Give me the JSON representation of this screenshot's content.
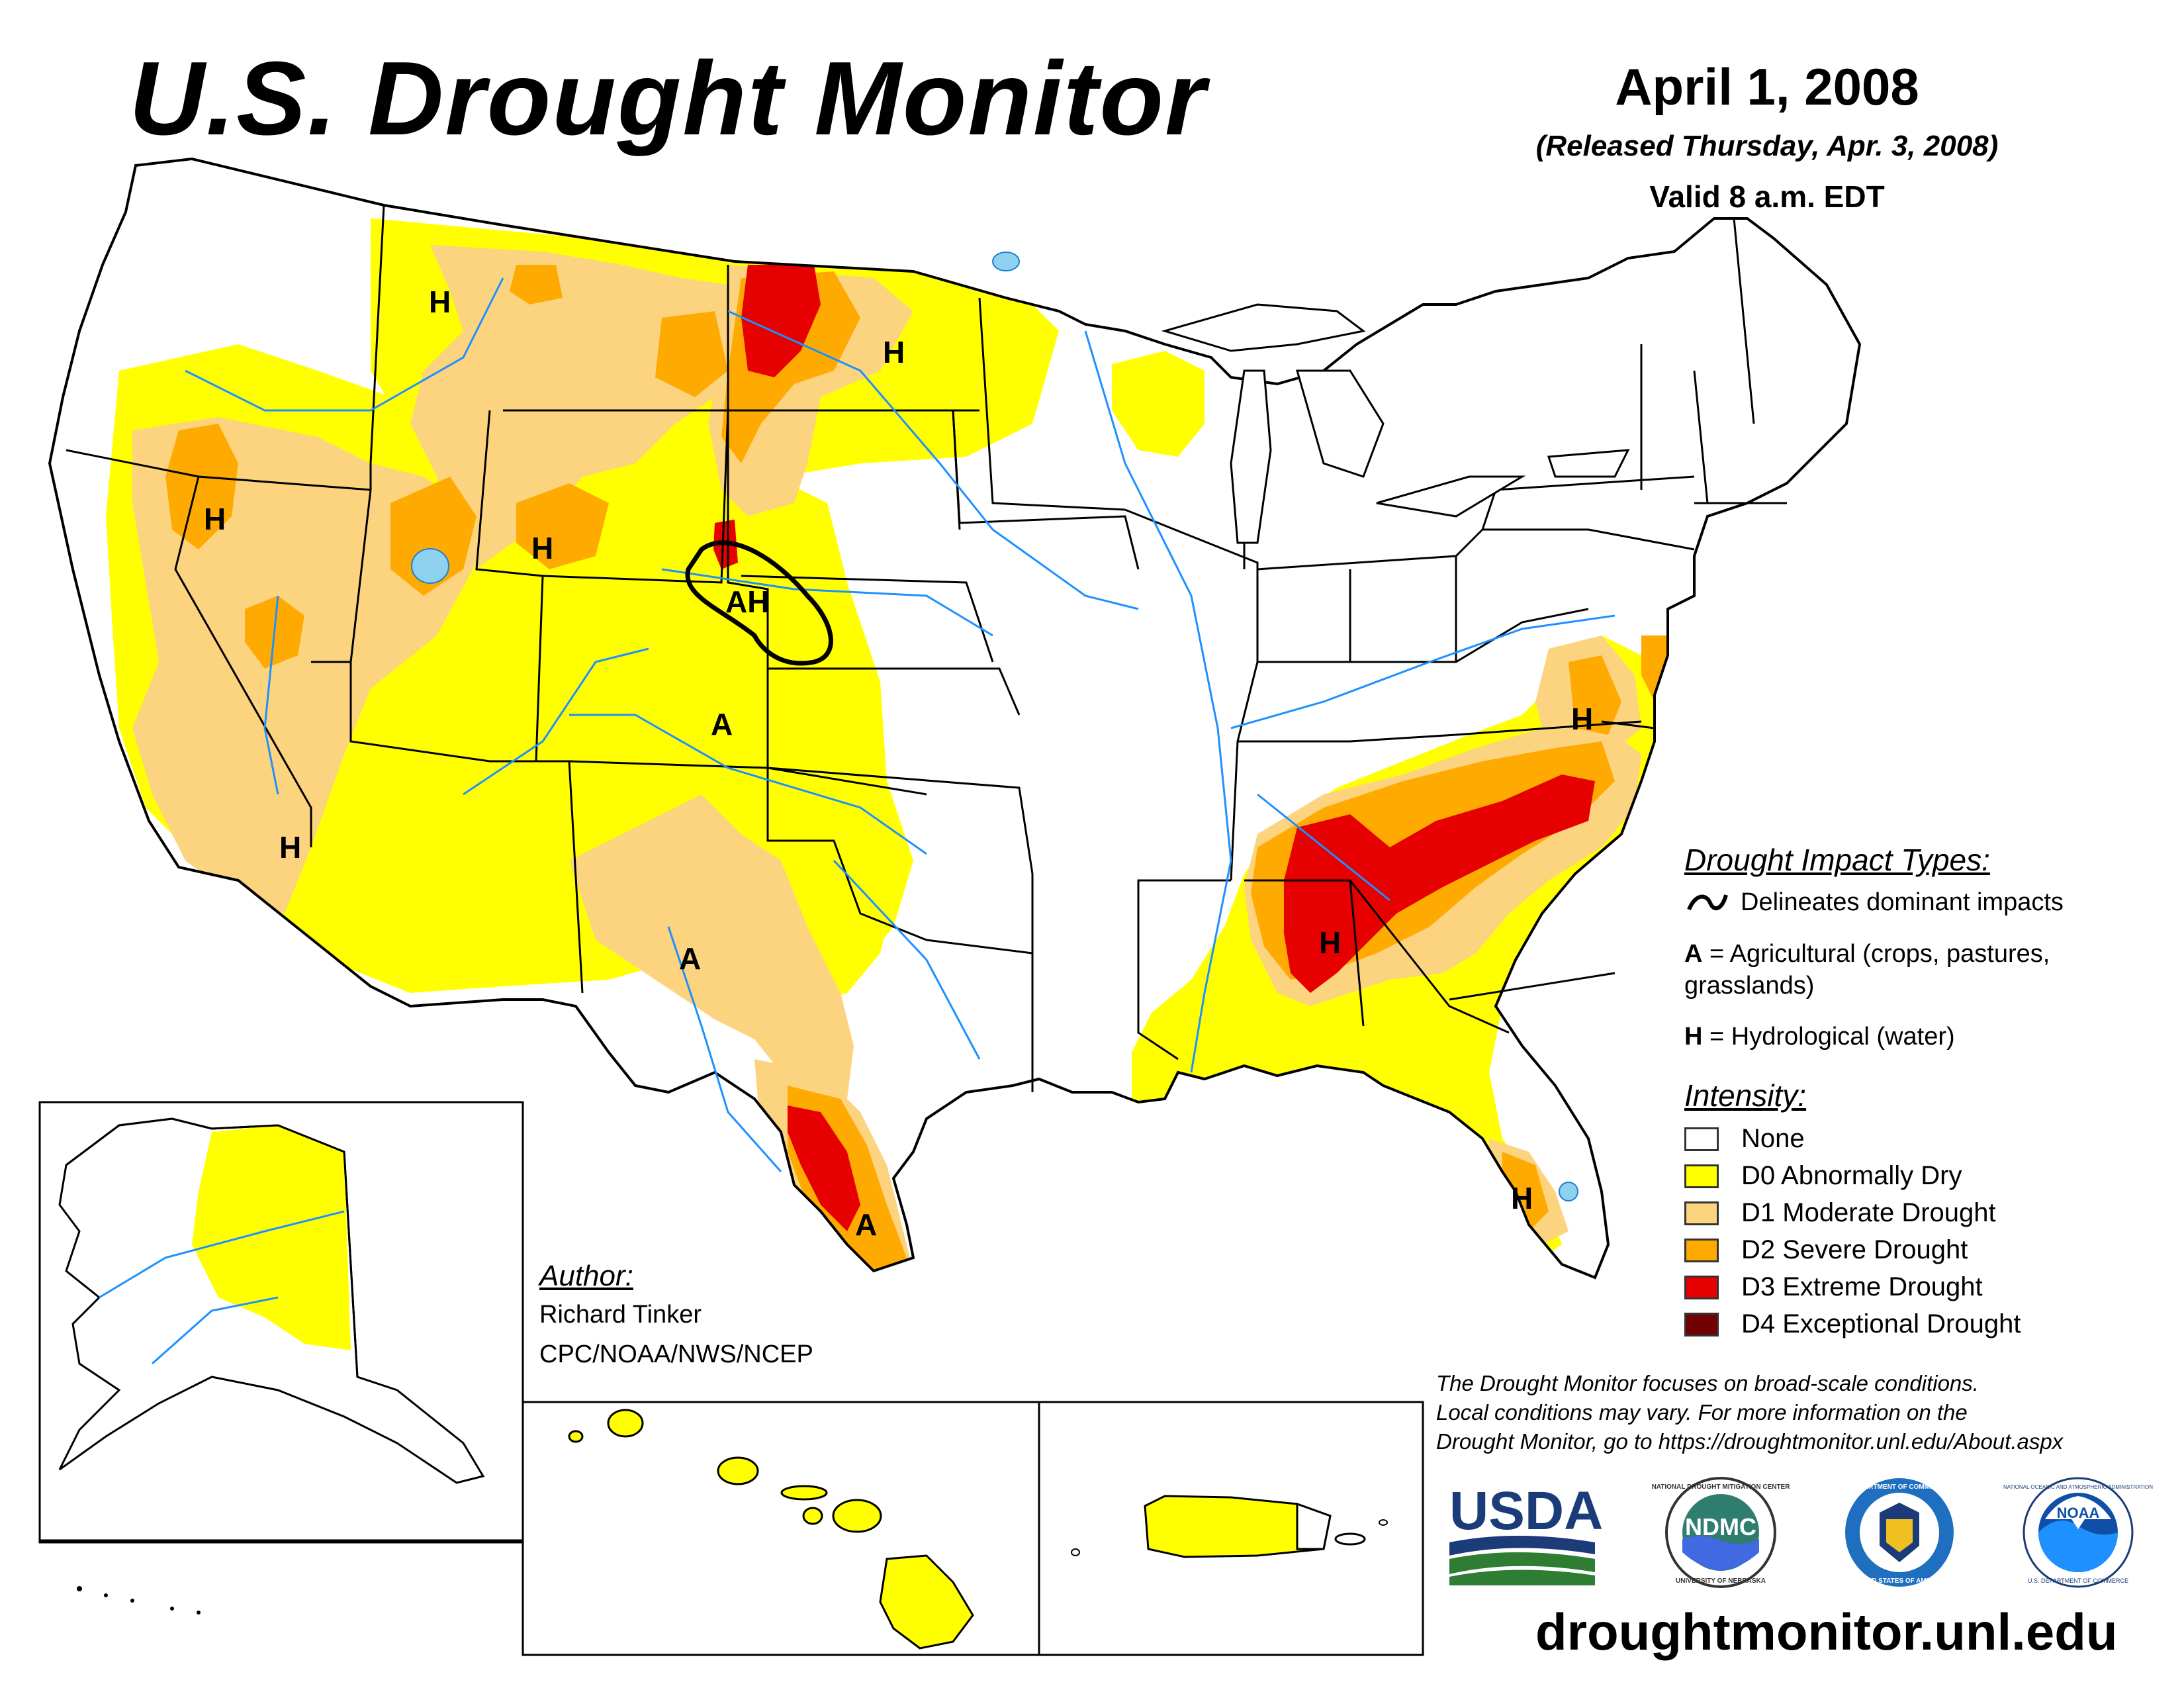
{
  "header": {
    "title": "U.S. Drought Monitor",
    "date": "April 1, 2008",
    "released": "(Released Thursday, Apr. 3, 2008)",
    "valid": "Valid 8 a.m. EDT"
  },
  "impacts": {
    "heading": "Drought Impact Types:",
    "curve_label": "Delineates dominant impacts",
    "a_key": "A",
    "a_desc_line1": "= Agricultural (crops, pastures,",
    "a_desc_line2": "grasslands)",
    "h_key": "H",
    "h_desc": "= Hydrological (water)"
  },
  "intensity": {
    "heading": "Intensity:",
    "levels": [
      {
        "label": "None",
        "color": "#FFFFFF"
      },
      {
        "label": "D0 Abnormally Dry",
        "color": "#FFFF00"
      },
      {
        "label": "D1 Moderate Drought",
        "color": "#FCD37F"
      },
      {
        "label": "D2 Severe Drought",
        "color": "#FFAA00"
      },
      {
        "label": "D3 Extreme Drought",
        "color": "#E60000"
      },
      {
        "label": "D4 Exceptional Drought",
        "color": "#730000"
      }
    ]
  },
  "author": {
    "heading": "Author:",
    "name": "Richard Tinker",
    "org": "CPC/NOAA/NWS/NCEP"
  },
  "note": {
    "line1": "The Drought Monitor focuses on broad-scale conditions.",
    "line2": "Local conditions may vary. For more information on the",
    "line3": "Drought Monitor, go to https://droughtmonitor.unl.edu/About.aspx"
  },
  "map_labels": {
    "h": "H",
    "a": "A",
    "ah": "AH"
  },
  "logos": {
    "usda": "USDA",
    "ndmc": "NDMC",
    "ndmc_ring_top": "NATIONAL DROUGHT MITIGATION CENTER",
    "ndmc_ring_bottom": "UNIVERSITY OF NEBRASKA",
    "doc_ring_top": "DEPARTMENT OF COMMERCE",
    "doc_ring_bottom": "UNITED STATES OF AMERICA",
    "noaa": "NOAA",
    "noaa_ring_top": "NATIONAL OCEANIC AND ATMOSPHERIC ADMINISTRATION",
    "noaa_ring_bottom": "U.S. DEPARTMENT OF COMMERCE"
  },
  "footer_url": "droughtmonitor.unl.edu"
}
